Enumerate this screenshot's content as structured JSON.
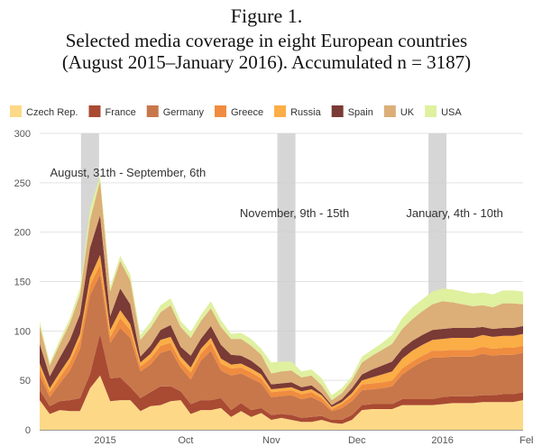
{
  "figure": {
    "line1": "Figure 1.",
    "line2": "Selected media coverage in eight European countries",
    "line3": "(August 2015–January 2016). Accumulated n = 3187)"
  },
  "chart_data": {
    "type": "area",
    "stacked": true,
    "ylim": [
      0,
      300
    ],
    "yticks": [
      0,
      50,
      100,
      150,
      200,
      250,
      300
    ],
    "grid": true,
    "legend_position": "top",
    "xticks": [
      {
        "label": "2015",
        "x": 6.5
      },
      {
        "label": "Oct",
        "x": 14.5
      },
      {
        "label": "Nov",
        "x": 23
      },
      {
        "label": "Dec",
        "x": 31.5
      },
      {
        "label": "2016",
        "x": 40
      },
      {
        "label": "Feb",
        "x": 48.5
      }
    ],
    "x": [
      0,
      1,
      2,
      3,
      4,
      5,
      6,
      7,
      8,
      9,
      10,
      11,
      12,
      13,
      14,
      15,
      16,
      17,
      18,
      19,
      20,
      21,
      22,
      23,
      24,
      25,
      26,
      27,
      28,
      29,
      30,
      31,
      32,
      33,
      34,
      35,
      36,
      37,
      38,
      39,
      40,
      41,
      42,
      43,
      44,
      45,
      46,
      47,
      48
    ],
    "series": [
      {
        "name": "Czech Rep.",
        "color": "#fdd987",
        "values": [
          30,
          16,
          20,
          19,
          19,
          42,
          55,
          29,
          30,
          30,
          19,
          24,
          25,
          29,
          30,
          16,
          20,
          20,
          22,
          13,
          19,
          13,
          17,
          10,
          12,
          10,
          8,
          8,
          10,
          7,
          6,
          10,
          20,
          21,
          21,
          21,
          25,
          25,
          25,
          25,
          26,
          27,
          27,
          27,
          28,
          28,
          28,
          28,
          30
        ]
      },
      {
        "name": "France",
        "color": "#a94a33",
        "values": [
          10,
          8,
          9,
          11,
          13,
          14,
          42,
          23,
          23,
          13,
          13,
          14,
          19,
          15,
          9,
          10,
          10,
          10,
          10,
          7,
          8,
          7,
          5,
          5,
          4,
          5,
          4,
          5,
          4,
          3,
          4,
          5,
          5,
          5,
          5,
          5,
          6,
          6,
          6,
          6,
          7,
          7,
          7,
          7,
          7,
          7,
          8,
          8,
          8
        ]
      },
      {
        "name": "Germany",
        "color": "#c8774a",
        "values": [
          15,
          9,
          18,
          30,
          50,
          80,
          60,
          36,
          50,
          50,
          27,
          28,
          34,
          37,
          24,
          25,
          40,
          50,
          28,
          35,
          30,
          32,
          25,
          18,
          18,
          20,
          19,
          20,
          14,
          9,
          12,
          14,
          15,
          15,
          16,
          18,
          25,
          32,
          38,
          42,
          40,
          40,
          40,
          40,
          42,
          40,
          40,
          40,
          40
        ]
      },
      {
        "name": "Greece",
        "color": "#ef8c3f",
        "values": [
          7,
          5,
          6,
          8,
          9,
          10,
          10,
          6,
          10,
          8,
          5,
          6,
          7,
          7,
          6,
          7,
          7,
          8,
          7,
          7,
          6,
          6,
          5,
          5,
          5,
          5,
          5,
          5,
          4,
          2,
          4,
          5,
          6,
          6,
          6,
          6,
          6,
          6,
          6,
          7,
          7,
          7,
          7,
          7,
          7,
          7,
          7,
          7,
          7
        ]
      },
      {
        "name": "Russia",
        "color": "#fbad46",
        "values": [
          5,
          4,
          5,
          5,
          6,
          8,
          10,
          7,
          8,
          6,
          4,
          5,
          6,
          6,
          5,
          5,
          5,
          5,
          5,
          4,
          4,
          4,
          4,
          3,
          3,
          3,
          3,
          3,
          3,
          2,
          2,
          3,
          4,
          6,
          8,
          9,
          10,
          11,
          11,
          11,
          12,
          12,
          12,
          12,
          12,
          12,
          12,
          12,
          12
        ]
      },
      {
        "name": "Spain",
        "color": "#7a3a35",
        "values": [
          20,
          12,
          15,
          18,
          20,
          30,
          40,
          14,
          22,
          20,
          6,
          8,
          10,
          12,
          10,
          12,
          10,
          12,
          14,
          10,
          8,
          8,
          6,
          5,
          5,
          5,
          4,
          4,
          2,
          2,
          3,
          5,
          6,
          8,
          9,
          10,
          10,
          10,
          10,
          10,
          10,
          10,
          10,
          10,
          8,
          8,
          8,
          8,
          8
        ]
      },
      {
        "name": "UK",
        "color": "#dcae78",
        "values": [
          18,
          11,
          14,
          17,
          20,
          28,
          35,
          25,
          28,
          24,
          17,
          18,
          18,
          20,
          20,
          18,
          18,
          18,
          18,
          16,
          17,
          15,
          14,
          11,
          12,
          12,
          10,
          10,
          8,
          5,
          6,
          8,
          12,
          14,
          16,
          18,
          20,
          22,
          24,
          26,
          28,
          26,
          24,
          22,
          22,
          22,
          25,
          25,
          22
        ]
      },
      {
        "name": "USA",
        "color": "#dff09f",
        "values": [
          5,
          3,
          4,
          5,
          6,
          12,
          5,
          5,
          5,
          6,
          5,
          6,
          7,
          7,
          6,
          6,
          6,
          7,
          7,
          5,
          6,
          7,
          6,
          11,
          10,
          9,
          6,
          6,
          7,
          5,
          5,
          4,
          6,
          6,
          7,
          9,
          11,
          12,
          12,
          13,
          13,
          13,
          13,
          13,
          13,
          13,
          13,
          13,
          13
        ]
      }
    ],
    "highlights": [
      {
        "label": "August, 31th - September, 6th",
        "x": 5
      },
      {
        "label": "November, 9th - 15th",
        "x": 24.5
      },
      {
        "label": "January, 4th - 10th",
        "x": 39.5
      }
    ]
  }
}
